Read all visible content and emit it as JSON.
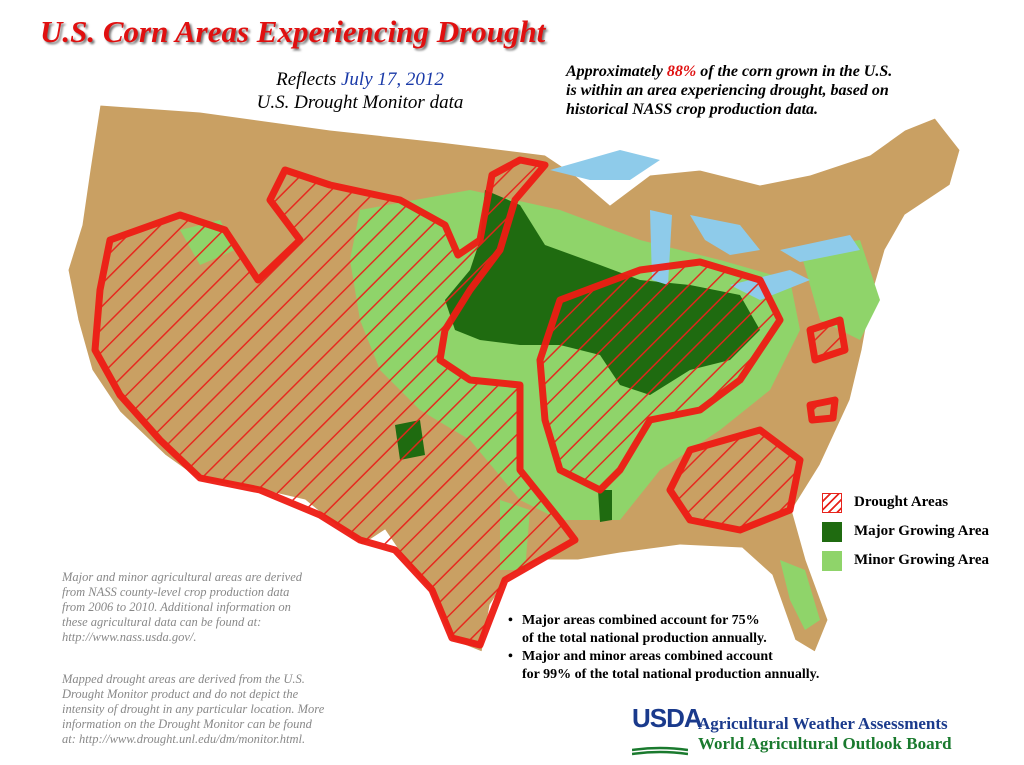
{
  "header": {
    "title": "U.S. Corn Areas Experiencing Drought",
    "subtitle": {
      "prefix": "Reflects",
      "date": "July 17, 2012",
      "line2": "U.S. Drought Monitor data"
    },
    "summary": {
      "before": "Approximately",
      "percent": "88%",
      "after": "of the corn grown in the U.S.",
      "lines": [
        "is within an area experiencing drought, based on",
        "historical NASS crop production data."
      ]
    }
  },
  "legend": [
    {
      "label": "Drought Areas"
    },
    {
      "label": "Major Growing Area"
    },
    {
      "label": "Minor Growing Area"
    }
  ],
  "notes": [
    [
      "Major and minor agricultural areas are derived",
      "from NASS county-level crop production data",
      "from 2006 to 2010.  Additional information on",
      "these agricultural data can be found at:",
      "http://www.nass.usda.gov/."
    ],
    [
      "Mapped drought areas are derived from the U.S.",
      "Drought Monitor product and do not depict the",
      "intensity of drought in any particular location.  More",
      "information on the Drought Monitor can be found",
      "at:  http://www.drought.unl.edu/dm/monitor.html."
    ]
  ],
  "bullets": [
    [
      "Major areas combined account for 75%",
      "of the total national production annually."
    ],
    [
      "Major and minor areas combined account",
      "for 99% of the total national production annually."
    ]
  ],
  "footer": {
    "logo": "USDA",
    "lines": [
      "Agricultural Weather Assessments",
      "World Agricultural Outlook Board"
    ]
  }
}
